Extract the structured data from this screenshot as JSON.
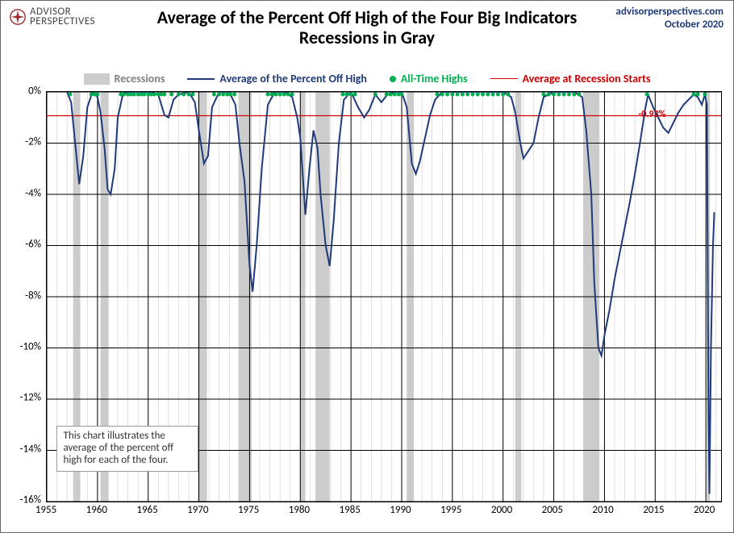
{
  "branding": {
    "logo_top": "ADVISOR",
    "logo_bottom": "PERSPECTIVES",
    "url": "advisorperspectives.com",
    "date": "October 2020"
  },
  "title_line1": "Average of the Percent Off High of the Four Big Indicators",
  "title_line2": "Recessions in Gray",
  "legend": {
    "recessions": "Recessions",
    "avg_line": "Average of the Percent Off High",
    "highs": "All-Time Highs",
    "ref": "Average at Recession Starts"
  },
  "note": "This chart illustrates the average of the percent off high for each of the four.",
  "chart": {
    "type": "line",
    "x_min": 1955,
    "x_max": 2021.5,
    "y_min": -16,
    "y_max": 0,
    "y_ticks": [
      0,
      -2,
      -4,
      -6,
      -8,
      -10,
      -12,
      -14,
      -16
    ],
    "y_tick_labels": [
      "0%",
      "-2%",
      "-4%",
      "-6%",
      "-8%",
      "-10%",
      "-12%",
      "-14%",
      "-16%"
    ],
    "x_ticks": [
      1955,
      1960,
      1965,
      1970,
      1975,
      1980,
      1985,
      1990,
      1995,
      2000,
      2005,
      2010,
      2015,
      2020
    ],
    "x_minor_step": 1,
    "ref_line_value": -0.93,
    "ref_line_label": "-0.93%",
    "colors": {
      "background": "#ffffff",
      "grid_major": "#000000",
      "grid_minor": "#cccccc",
      "recession_fill": "#cccccc",
      "series_line": "#1f3b7a",
      "highs_marker": "#00b050",
      "ref_line": "#cc0000"
    },
    "line_width": 2,
    "recessions": [
      [
        1957.6,
        1958.3
      ],
      [
        1960.3,
        1961.1
      ],
      [
        1969.9,
        1970.8
      ],
      [
        1973.9,
        1975.2
      ],
      [
        1980.0,
        1980.5
      ],
      [
        1981.5,
        1982.9
      ],
      [
        1990.5,
        1991.2
      ],
      [
        2001.2,
        2001.8
      ],
      [
        2007.9,
        2009.5
      ],
      [
        2020.1,
        2020.4
      ]
    ],
    "highs_x": [
      1957.3,
      1959.4,
      1959.7,
      1960.0,
      1962.3,
      1962.6,
      1963.0,
      1963.3,
      1963.6,
      1964.0,
      1964.3,
      1964.6,
      1965.0,
      1965.3,
      1965.6,
      1966.0,
      1966.3,
      1966.6,
      1967.3,
      1968.0,
      1968.5,
      1969.0,
      1969.4,
      1971.5,
      1972.0,
      1972.4,
      1972.8,
      1973.1,
      1973.5,
      1976.8,
      1977.2,
      1977.6,
      1978.0,
      1978.4,
      1978.8,
      1979.2,
      1984.2,
      1984.6,
      1985.0,
      1985.4,
      1987.4,
      1988.5,
      1988.9,
      1989.3,
      1989.7,
      1990.0,
      1993.5,
      1994.0,
      1994.5,
      1995.0,
      1995.5,
      1996.0,
      1996.5,
      1997.0,
      1997.5,
      1998.0,
      1998.5,
      1999.0,
      1999.5,
      2000.0,
      2000.5,
      2004.0,
      2004.5,
      2005.0,
      2005.5,
      2006.0,
      2006.5,
      2007.0,
      2007.5,
      2014.2,
      2018.8,
      2019.2,
      2019.9
    ],
    "series": [
      [
        1957.0,
        0.0
      ],
      [
        1957.4,
        -0.4
      ],
      [
        1957.8,
        -2.0
      ],
      [
        1958.2,
        -3.6
      ],
      [
        1958.6,
        -2.5
      ],
      [
        1959.0,
        -0.6
      ],
      [
        1959.5,
        0.0
      ],
      [
        1960.0,
        -0.2
      ],
      [
        1960.3,
        -0.8
      ],
      [
        1960.7,
        -2.2
      ],
      [
        1961.0,
        -3.8
      ],
      [
        1961.3,
        -4.0
      ],
      [
        1961.7,
        -3.0
      ],
      [
        1962.0,
        -1.0
      ],
      [
        1962.5,
        -0.1
      ],
      [
        1963.0,
        0.0
      ],
      [
        1964.0,
        0.0
      ],
      [
        1965.0,
        0.0
      ],
      [
        1966.0,
        -0.1
      ],
      [
        1966.6,
        -0.9
      ],
      [
        1967.0,
        -1.0
      ],
      [
        1967.5,
        -0.3
      ],
      [
        1968.0,
        -0.1
      ],
      [
        1969.0,
        0.0
      ],
      [
        1969.6,
        -0.4
      ],
      [
        1970.0,
        -1.5
      ],
      [
        1970.5,
        -2.8
      ],
      [
        1970.9,
        -2.5
      ],
      [
        1971.3,
        -0.6
      ],
      [
        1972.0,
        0.0
      ],
      [
        1973.0,
        0.0
      ],
      [
        1973.6,
        -0.5
      ],
      [
        1974.0,
        -2.0
      ],
      [
        1974.5,
        -3.5
      ],
      [
        1975.0,
        -6.8
      ],
      [
        1975.3,
        -7.8
      ],
      [
        1975.7,
        -6.0
      ],
      [
        1976.2,
        -3.0
      ],
      [
        1976.8,
        -0.5
      ],
      [
        1977.5,
        0.0
      ],
      [
        1978.5,
        0.0
      ],
      [
        1979.2,
        -0.2
      ],
      [
        1979.7,
        -1.0
      ],
      [
        1980.0,
        -1.8
      ],
      [
        1980.5,
        -4.8
      ],
      [
        1980.9,
        -3.0
      ],
      [
        1981.3,
        -1.5
      ],
      [
        1981.7,
        -2.2
      ],
      [
        1982.0,
        -4.0
      ],
      [
        1982.5,
        -6.0
      ],
      [
        1982.9,
        -6.8
      ],
      [
        1983.3,
        -5.0
      ],
      [
        1983.8,
        -2.0
      ],
      [
        1984.3,
        -0.3
      ],
      [
        1985.0,
        0.0
      ],
      [
        1985.7,
        -0.6
      ],
      [
        1986.3,
        -1.0
      ],
      [
        1986.8,
        -0.7
      ],
      [
        1987.4,
        -0.1
      ],
      [
        1988.0,
        -0.4
      ],
      [
        1988.6,
        -0.1
      ],
      [
        1989.4,
        0.0
      ],
      [
        1990.0,
        0.0
      ],
      [
        1990.5,
        -0.6
      ],
      [
        1991.0,
        -2.8
      ],
      [
        1991.4,
        -3.2
      ],
      [
        1991.8,
        -2.7
      ],
      [
        1992.3,
        -1.8
      ],
      [
        1992.8,
        -0.9
      ],
      [
        1993.3,
        -0.3
      ],
      [
        1994.0,
        0.0
      ],
      [
        1996.0,
        0.0
      ],
      [
        1998.0,
        0.0
      ],
      [
        2000.0,
        0.0
      ],
      [
        2000.8,
        -0.2
      ],
      [
        2001.2,
        -0.8
      ],
      [
        2001.7,
        -2.0
      ],
      [
        2002.0,
        -2.6
      ],
      [
        2002.5,
        -2.3
      ],
      [
        2003.0,
        -2.0
      ],
      [
        2003.5,
        -1.0
      ],
      [
        2004.0,
        -0.2
      ],
      [
        2005.0,
        0.0
      ],
      [
        2006.0,
        0.0
      ],
      [
        2007.0,
        0.0
      ],
      [
        2007.8,
        -0.2
      ],
      [
        2008.2,
        -1.5
      ],
      [
        2008.7,
        -4.0
      ],
      [
        2009.0,
        -7.5
      ],
      [
        2009.4,
        -10.0
      ],
      [
        2009.7,
        -10.3
      ],
      [
        2010.0,
        -9.5
      ],
      [
        2010.5,
        -8.5
      ],
      [
        2011.0,
        -7.3
      ],
      [
        2011.5,
        -6.3
      ],
      [
        2012.0,
        -5.3
      ],
      [
        2012.5,
        -4.3
      ],
      [
        2013.0,
        -3.2
      ],
      [
        2013.5,
        -2.0
      ],
      [
        2014.0,
        -0.7
      ],
      [
        2014.3,
        -0.1
      ],
      [
        2014.8,
        -0.6
      ],
      [
        2015.3,
        -1.0
      ],
      [
        2015.8,
        -1.4
      ],
      [
        2016.3,
        -1.6
      ],
      [
        2016.8,
        -1.2
      ],
      [
        2017.3,
        -0.8
      ],
      [
        2017.8,
        -0.5
      ],
      [
        2018.3,
        -0.3
      ],
      [
        2018.8,
        -0.1
      ],
      [
        2019.2,
        -0.2
      ],
      [
        2019.6,
        -0.5
      ],
      [
        2019.9,
        -0.1
      ],
      [
        2020.1,
        -0.5
      ],
      [
        2020.25,
        -12.0
      ],
      [
        2020.35,
        -15.7
      ],
      [
        2020.5,
        -10.0
      ],
      [
        2020.7,
        -6.0
      ],
      [
        2020.83,
        -4.7
      ]
    ]
  }
}
